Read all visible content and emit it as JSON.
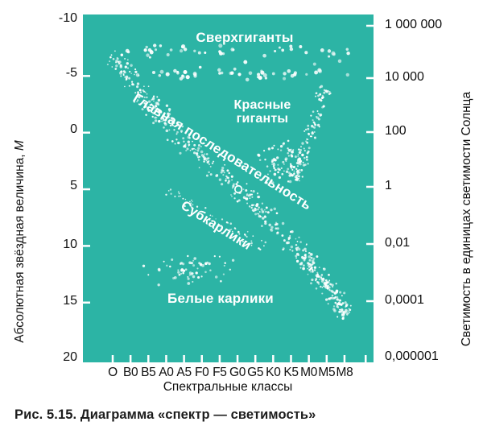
{
  "figure": {
    "caption": "Рис. 5.15. Диаграмма «спектр — светимость»"
  },
  "chart_data": {
    "type": "scatter",
    "bg_color": "#2cb4a5",
    "dot_color": "#ffffff",
    "x_axis": {
      "label": "Спектральные классы",
      "ticks": [
        "O",
        "B0",
        "B5",
        "A0",
        "A5",
        "F0",
        "F5",
        "G0",
        "G5",
        "K0",
        "K5",
        "M0",
        "M5",
        "M8"
      ]
    },
    "y_axis_left": {
      "label": "Абсолютная звёздная величина,",
      "label_symbol": "М",
      "ticks": [
        "-10",
        "-5",
        "0",
        "5",
        "10",
        "15",
        "20"
      ]
    },
    "y_axis_right": {
      "label": "Светимость в единицах светимости Солнца",
      "ticks": [
        "1 000 000",
        "10 000",
        "100",
        "1",
        "0,01",
        "0,0001",
        "0,000001"
      ]
    },
    "regions": [
      {
        "name": "supergiants",
        "label": "Сверхгиганты",
        "class_range": [
          0.4,
          13.3
        ],
        "magnitude_range": [
          -7.9,
          -4.5
        ]
      },
      {
        "name": "main_sequence",
        "label": "Главная последовательность",
        "path": [
          [
            -0.1,
            -6.9
          ],
          [
            1,
            -4.8
          ],
          [
            2,
            -2.8
          ],
          [
            3,
            -1.0
          ],
          [
            4,
            0.8
          ],
          [
            5,
            2.3
          ],
          [
            6,
            3.6
          ],
          [
            7,
            4.9
          ],
          [
            8,
            6.3
          ],
          [
            9,
            7.9
          ],
          [
            10,
            9.8
          ],
          [
            11,
            11.6
          ],
          [
            12,
            13.5
          ],
          [
            12.8,
            15.2
          ],
          [
            13.2,
            16.1
          ]
        ]
      },
      {
        "name": "red_giants",
        "label": "Красные гиганты",
        "path": [
          [
            10.2,
            4.2
          ],
          [
            10.8,
            1.5
          ],
          [
            11.3,
            -0.8
          ],
          [
            11.7,
            -3.0
          ],
          [
            11.9,
            -4.3
          ]
        ],
        "cloud_class_range": [
          8.0,
          11.3
        ],
        "cloud_magnitude_range": [
          0.6,
          4.6
        ]
      },
      {
        "name": "subdwarfs",
        "label": "Субкарлики",
        "path": [
          [
            3.0,
            4.9
          ],
          [
            4.8,
            6.6
          ],
          [
            6.8,
            8.5
          ],
          [
            8.5,
            10.3
          ]
        ]
      },
      {
        "name": "white_dwarfs",
        "label": "Белые карлики",
        "center": [
          4.3,
          12.1
        ],
        "spread": [
          3.0,
          1.4
        ]
      }
    ],
    "sun": {
      "symbol": "circle",
      "class_x": 7.05,
      "abs_magnitude": 5.0
    }
  }
}
